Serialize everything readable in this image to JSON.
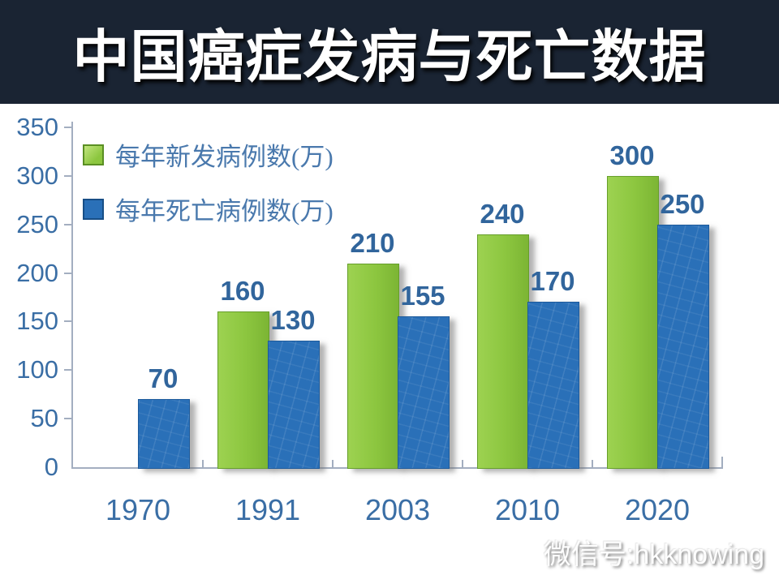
{
  "title": "中国癌症发病与死亡数据",
  "watermark": "微信号:hkknowing",
  "colors": {
    "title_background": "#1a2433",
    "title_text": "#ffffff",
    "series_new_cases": "#8cc63f",
    "series_deaths": "#2a70b8",
    "axis_text": "#3a6ea5",
    "data_label_text": "#31659c",
    "axis_line": "#a3aec0"
  },
  "chart_data": {
    "type": "bar",
    "title": "中国癌症发病与死亡数据",
    "categories": [
      "1970",
      "1991",
      "2003",
      "2010",
      "2020"
    ],
    "series": [
      {
        "name": "每年新发病例数(万)",
        "color": "#8cc63f",
        "values": [
          null,
          160,
          210,
          240,
          300
        ]
      },
      {
        "name": "每年死亡病例数(万)",
        "color": "#2a70b8",
        "values": [
          70,
          130,
          155,
          170,
          250
        ]
      }
    ],
    "xlabel": "",
    "ylabel": "",
    "ylim": [
      0,
      350
    ],
    "yticks": [
      0,
      50,
      100,
      150,
      200,
      250,
      300,
      350
    ],
    "grid": false,
    "legend_position": "top-left",
    "data_labels": true
  }
}
